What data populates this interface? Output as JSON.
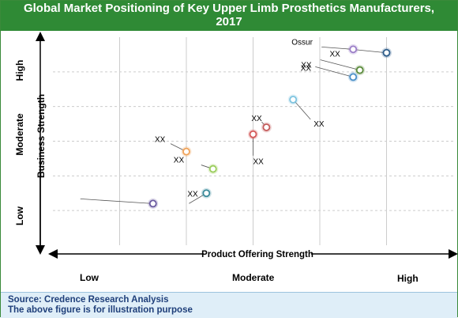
{
  "title_line1": "Global Market Positioning of Key Upper Limb Prosthetics Manufacturers,",
  "title_line2": "2017",
  "footer": {
    "source": "Source: Credence Research Analysis",
    "note": "The above figure is for illustration purpose"
  },
  "axes": {
    "x_axis_label": "Product Offering Strength",
    "y_axis_label": "Business Strength",
    "x_levels": [
      "Low",
      "Moderate",
      "High"
    ],
    "y_levels": [
      "Low",
      "Moderate",
      "High"
    ]
  },
  "colors": {
    "title_bar": "#2f8a35",
    "footer_bg": "#dfeef8",
    "footer_text": "#1f3f7a",
    "grid": "#cccccc"
  },
  "chart_data": {
    "type": "scatter",
    "title": "Global Market Positioning of Key Upper Limb Prosthetics Manufacturers, 2017",
    "xlabel": "Product Offering Strength",
    "ylabel": "Business Strength",
    "xlim": [
      0,
      6
    ],
    "ylim": [
      0,
      6
    ],
    "grid": true,
    "points": [
      {
        "label": "Ossur",
        "x": 4.5,
        "y": 5.65,
        "color": "#9b7ec8"
      },
      {
        "label": "XX",
        "x": 5.0,
        "y": 5.55,
        "color": "#2e5d8a"
      },
      {
        "label": "XX",
        "x": 4.6,
        "y": 5.05,
        "color": "#5a8a3a"
      },
      {
        "label": "XX",
        "x": 4.5,
        "y": 4.85,
        "color": "#4a8fc8"
      },
      {
        "label": "XX",
        "x": 3.6,
        "y": 4.2,
        "color": "#7ec4e0"
      },
      {
        "label": "XX",
        "x": 3.2,
        "y": 3.4,
        "color": "#c45a5a"
      },
      {
        "label": "XX",
        "x": 3.0,
        "y": 3.2,
        "color": "#d45858"
      },
      {
        "label": "XX",
        "x": 2.0,
        "y": 2.7,
        "color": "#f0a35a"
      },
      {
        "label": "XX",
        "x": 2.4,
        "y": 2.2,
        "color": "#9acd5a"
      },
      {
        "label": "XX",
        "x": 2.3,
        "y": 1.5,
        "color": "#3a8a9a"
      },
      {
        "label": "XX",
        "x": 1.5,
        "y": 1.2,
        "color": "#6a5aa0"
      }
    ]
  }
}
